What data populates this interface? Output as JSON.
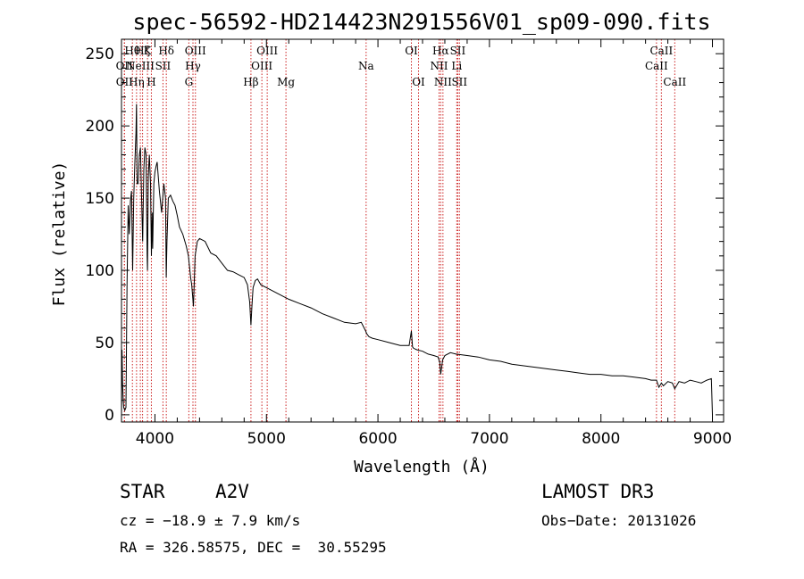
{
  "chart_data": {
    "type": "line",
    "title": "spec-56592-HD214423N291556V01_sp09-090.fits",
    "xlabel": "Wavelength (Å)",
    "ylabel": "Flux (relative)",
    "xlim": [
      3700,
      9100
    ],
    "ylim": [
      -5,
      260
    ],
    "xticks": [
      4000,
      5000,
      6000,
      7000,
      8000,
      9000
    ],
    "yticks": [
      0,
      50,
      100,
      150,
      200,
      250
    ],
    "series": [
      {
        "name": "flux",
        "x": [
          3700,
          3705,
          3710,
          3715,
          3720,
          3730,
          3740,
          3750,
          3760,
          3770,
          3780,
          3790,
          3800,
          3810,
          3820,
          3830,
          3835,
          3840,
          3850,
          3860,
          3870,
          3880,
          3890,
          3900,
          3910,
          3920,
          3930,
          3933,
          3940,
          3950,
          3960,
          3968,
          3975,
          3980,
          3990,
          4000,
          4010,
          4020,
          4040,
          4060,
          4080,
          4095,
          4101,
          4108,
          4120,
          4140,
          4160,
          4180,
          4200,
          4220,
          4250,
          4280,
          4300,
          4320,
          4330,
          4340,
          4345,
          4350,
          4360,
          4380,
          4400,
          4450,
          4500,
          4550,
          4600,
          4650,
          4700,
          4750,
          4800,
          4830,
          4850,
          4861,
          4870,
          4880,
          4900,
          4920,
          4950,
          5000,
          5100,
          5200,
          5300,
          5400,
          5500,
          5600,
          5700,
          5800,
          5850,
          5890,
          5900,
          5920,
          5950,
          6000,
          6100,
          6200,
          6280,
          6300,
          6310,
          6320,
          6350,
          6400,
          6450,
          6500,
          6540,
          6555,
          6563,
          6570,
          6580,
          6600,
          6650,
          6700,
          6800,
          6900,
          7000,
          7100,
          7200,
          7300,
          7400,
          7500,
          7600,
          7700,
          7800,
          7900,
          8000,
          8100,
          8200,
          8300,
          8400,
          8450,
          8498,
          8520,
          8542,
          8560,
          8600,
          8640,
          8662,
          8700,
          8750,
          8800,
          8850,
          8900,
          8950,
          8990,
          9000
        ],
        "y": [
          0,
          45,
          22,
          10,
          5,
          3,
          5,
          90,
          145,
          125,
          148,
          155,
          100,
          150,
          175,
          195,
          215,
          160,
          160,
          180,
          185,
          150,
          120,
          170,
          185,
          180,
          110,
          100,
          165,
          180,
          160,
          110,
          140,
          115,
          160,
          168,
          172,
          175,
          155,
          140,
          160,
          150,
          95,
          120,
          150,
          152,
          148,
          145,
          138,
          130,
          125,
          117,
          110,
          95,
          90,
          80,
          75,
          85,
          110,
          120,
          122,
          120,
          112,
          110,
          105,
          100,
          99,
          97,
          95,
          90,
          78,
          62,
          75,
          88,
          93,
          94,
          90,
          88,
          84,
          80,
          77,
          74,
          70,
          67,
          64,
          63,
          64,
          58,
          56,
          54,
          53,
          52,
          50,
          48,
          48,
          58,
          47,
          46,
          45,
          44,
          42,
          41,
          40,
          36,
          28,
          32,
          38,
          41,
          43,
          42,
          41,
          40,
          38,
          37,
          35,
          34,
          33,
          32,
          31,
          30,
          29,
          28,
          28,
          27,
          27,
          26,
          25,
          24,
          24,
          19,
          22,
          20,
          23,
          22,
          18,
          23,
          22,
          24,
          23,
          22,
          24,
          25,
          0
        ]
      }
    ],
    "line_markers": [
      {
        "x": 3726,
        "label": "OII",
        "row": 2
      },
      {
        "x": 3727,
        "label": "OII",
        "row": 3
      },
      {
        "x": 3798,
        "label": "Hθ",
        "row": 1
      },
      {
        "x": 3835,
        "label": "Hη",
        "row": 3
      },
      {
        "x": 3869,
        "label": "NeIII",
        "row": 2
      },
      {
        "x": 3889,
        "label": "Hζ",
        "row": 1
      },
      {
        "x": 3933,
        "label": "K",
        "row": 1
      },
      {
        "x": 3968,
        "label": "H",
        "row": 3
      },
      {
        "x": 4072,
        "label": "SII",
        "row": 2
      },
      {
        "x": 4102,
        "label": "Hδ",
        "row": 1
      },
      {
        "x": 4304,
        "label": "G",
        "row": 3
      },
      {
        "x": 4341,
        "label": "Hγ",
        "row": 2
      },
      {
        "x": 4363,
        "label": "OIII",
        "row": 1
      },
      {
        "x": 4861,
        "label": "Hβ",
        "row": 3
      },
      {
        "x": 4959,
        "label": "OIII",
        "row": 2
      },
      {
        "x": 5007,
        "label": "OIII",
        "row": 1
      },
      {
        "x": 5175,
        "label": "Mg",
        "row": 3
      },
      {
        "x": 5894,
        "label": "Na",
        "row": 2
      },
      {
        "x": 6300,
        "label": "OI",
        "row": 1
      },
      {
        "x": 6364,
        "label": "OI",
        "row": 3
      },
      {
        "x": 6548,
        "label": "NII",
        "row": 2
      },
      {
        "x": 6563,
        "label": "Hα",
        "row": 1
      },
      {
        "x": 6583,
        "label": "NII",
        "row": 3
      },
      {
        "x": 6707,
        "label": "Li",
        "row": 2
      },
      {
        "x": 6716,
        "label": "SII",
        "row": 1
      },
      {
        "x": 6731,
        "label": "SII",
        "row": 3
      },
      {
        "x": 8498,
        "label": "CaII",
        "row": 2
      },
      {
        "x": 8542,
        "label": "CaII",
        "row": 1
      },
      {
        "x": 8662,
        "label": "CaII",
        "row": 3
      }
    ]
  },
  "info": {
    "object_class": "STAR",
    "subclass": "A2V",
    "survey": "LAMOST DR3",
    "redshift_text": "cz = −18.9 ± 7.9 km/s",
    "obs_date_text": "Obs−Date: 20131026",
    "coords_text": "RA = 326.58575, DEC =  30.55295"
  },
  "colors": {
    "line_marker": "#cc2222",
    "spectrum": "#000000"
  }
}
